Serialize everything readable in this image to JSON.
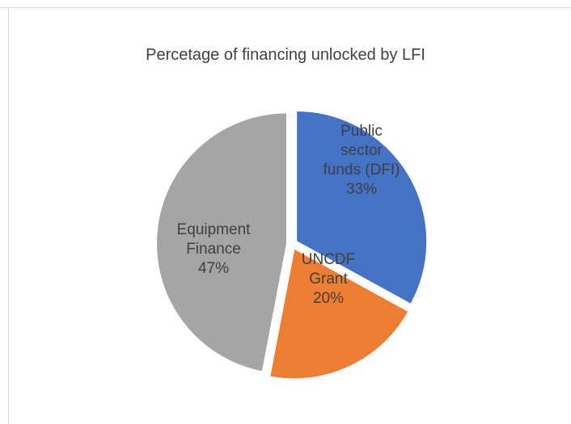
{
  "chart_data": {
    "type": "pie",
    "title": "Percetage of financing unlocked by LFI",
    "slices": [
      {
        "label_lines": [
          "Public",
          "sector",
          "funds (DFI)"
        ],
        "pct_label": "33%",
        "value": 33,
        "color": "#4472C4"
      },
      {
        "label_lines": [
          "UNCDF",
          "Grant"
        ],
        "pct_label": "20%",
        "value": 20,
        "color": "#ED7D31"
      },
      {
        "label_lines": [
          "Equipment",
          "Finance"
        ],
        "pct_label": "47%",
        "value": 47,
        "color": "#A5A5A5"
      }
    ],
    "legend": "none",
    "start_angle": "12 o'clock",
    "direction": "clockwise",
    "exploded": true
  }
}
